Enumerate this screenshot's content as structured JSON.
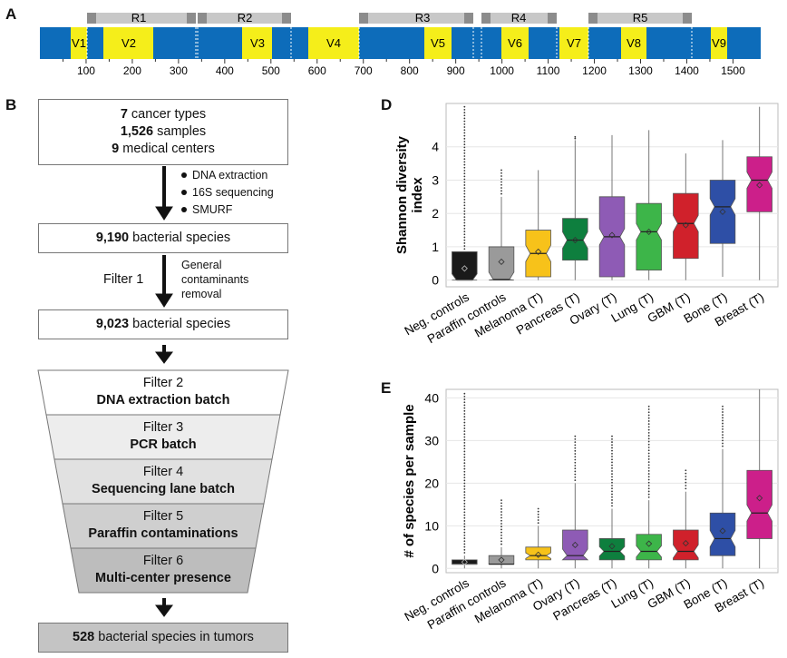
{
  "panels": {
    "a": "A",
    "b": "B",
    "d": "D",
    "e": "E"
  },
  "gene_map": {
    "regions": [
      "R1",
      "R2",
      "R3",
      "R4",
      "R5"
    ],
    "vregions": [
      "V1",
      "V2",
      "V3",
      "V4",
      "V5",
      "V6",
      "V7",
      "V8",
      "V9"
    ],
    "ticks": [
      "100",
      "200",
      "300",
      "400",
      "500",
      "600",
      "700",
      "800",
      "900",
      "1000",
      "1100",
      "1200",
      "1300",
      "1400",
      "1500"
    ],
    "colors": {
      "blue": "#0d6cba",
      "yellow": "#f5ee1a",
      "gray": "#c8c8c8",
      "darkgray": "#8c8c8c"
    }
  },
  "flow": {
    "box1": {
      "n1": "7",
      "t1": " cancer types",
      "n2": "1,526",
      "t2": " samples",
      "n3": "9",
      "t3": " medical centers"
    },
    "steps1": [
      "DNA extraction",
      "16S sequencing",
      "SMURF"
    ],
    "box2": {
      "n": "9,190",
      "t": " bacterial species"
    },
    "filter1_label": "Filter 1",
    "filter1_desc": [
      "General",
      "contaminants",
      "removal"
    ],
    "box3": {
      "n": "9,023",
      "t": " bacterial species"
    },
    "filters": [
      {
        "title": "Filter 2",
        "name": "DNA extraction batch",
        "color": "#ffffff"
      },
      {
        "title": "Filter 3",
        "name": "PCR batch",
        "color": "#ededed"
      },
      {
        "title": "Filter 4",
        "name": "Sequencing lane batch",
        "color": "#e1e1e1"
      },
      {
        "title": "Filter 5",
        "name": "Paraffin contaminations",
        "color": "#cfcfcf"
      },
      {
        "title": "Filter 6",
        "name": "Multi-center presence",
        "color": "#bdbdbd"
      }
    ],
    "final": {
      "n": "528",
      "t": " bacterial species in tumors"
    }
  },
  "chart_data": [
    {
      "type": "box",
      "panel": "D",
      "title": "",
      "xlabel": "",
      "ylabel": "Shannon diversity index",
      "ylim": [
        -0.2,
        5.3
      ],
      "yticks": [
        "0",
        "1",
        "2",
        "3",
        "4"
      ],
      "categories": [
        "Neg. controls",
        "Paraffin controls",
        "Melanoma (T)",
        "Pancreas (T)",
        "Ovary (T)",
        "Lung (T)",
        "GBM (T)",
        "Bone (T)",
        "Breast (T)"
      ],
      "colors": [
        "#1a1a1a",
        "#9a9a9a",
        "#f7c21a",
        "#0e7f3e",
        "#8e5bb5",
        "#3db549",
        "#d0212b",
        "#2e4fa6",
        "#cc1f8a"
      ],
      "boxes": [
        {
          "wlo": 0,
          "q1": 0,
          "med": 0,
          "q3": 0.85,
          "whi": 0.85,
          "mean": 0.35,
          "omax": 5.2
        },
        {
          "wlo": 0,
          "q1": 0,
          "med": 0.02,
          "q3": 1.0,
          "whi": 2.5,
          "mean": 0.55,
          "omax": 3.3
        },
        {
          "wlo": 0,
          "q1": 0.1,
          "med": 0.8,
          "q3": 1.5,
          "whi": 3.3,
          "mean": 0.85,
          "omax": 3.3
        },
        {
          "wlo": 0,
          "q1": 0.6,
          "med": 1.2,
          "q3": 1.85,
          "whi": 4.2,
          "mean": 1.2,
          "omax": 4.3
        },
        {
          "wlo": 0,
          "q1": 0.1,
          "med": 1.3,
          "q3": 2.5,
          "whi": 4.35,
          "mean": 1.35,
          "omax": 4.35
        },
        {
          "wlo": 0,
          "q1": 0.3,
          "med": 1.45,
          "q3": 2.3,
          "whi": 4.5,
          "mean": 1.45,
          "omax": 4.5
        },
        {
          "wlo": 0,
          "q1": 0.65,
          "med": 1.7,
          "q3": 2.6,
          "whi": 3.8,
          "mean": 1.65,
          "omax": 3.8
        },
        {
          "wlo": 0.1,
          "q1": 1.1,
          "med": 2.2,
          "q3": 3.0,
          "whi": 4.2,
          "mean": 2.05,
          "omax": 4.2
        },
        {
          "wlo": 0,
          "q1": 2.05,
          "med": 3.0,
          "q3": 3.7,
          "whi": 5.2,
          "mean": 2.85,
          "omax": 5.2
        }
      ]
    },
    {
      "type": "box",
      "panel": "E",
      "title": "",
      "xlabel": "",
      "ylabel": "# of species per sample",
      "ylim": [
        -1,
        42
      ],
      "yticks": [
        "0",
        "10",
        "20",
        "30",
        "40"
      ],
      "categories": [
        "Neg. controls",
        "Paraffin controls",
        "Melanoma (T)",
        "Ovary (T)",
        "Pancreas (T)",
        "Lung (T)",
        "GBM (T)",
        "Bone (T)",
        "Breast (T)"
      ],
      "colors": [
        "#1a1a1a",
        "#9a9a9a",
        "#f7c21a",
        "#8e5bb5",
        "#0e7f3e",
        "#3db549",
        "#d0212b",
        "#2e4fa6",
        "#cc1f8a"
      ],
      "boxes": [
        {
          "wlo": 0,
          "q1": 1,
          "med": 1,
          "q3": 2,
          "whi": 3,
          "mean": 1.5,
          "omax": 41
        },
        {
          "wlo": 0,
          "q1": 1,
          "med": 1,
          "q3": 3,
          "whi": 5,
          "mean": 2,
          "omax": 16
        },
        {
          "wlo": 0,
          "q1": 2,
          "med": 3,
          "q3": 5,
          "whi": 10,
          "mean": 3.2,
          "omax": 14
        },
        {
          "wlo": 0,
          "q1": 2,
          "med": 3,
          "q3": 9,
          "whi": 20,
          "mean": 5.5,
          "omax": 31
        },
        {
          "wlo": 0,
          "q1": 2,
          "med": 4,
          "q3": 7,
          "whi": 14,
          "mean": 5.2,
          "omax": 31
        },
        {
          "wlo": 0,
          "q1": 2,
          "med": 4,
          "q3": 8,
          "whi": 16,
          "mean": 5.8,
          "omax": 38
        },
        {
          "wlo": 0,
          "q1": 2,
          "med": 4,
          "q3": 9,
          "whi": 18,
          "mean": 5.9,
          "omax": 23
        },
        {
          "wlo": 0,
          "q1": 3,
          "med": 7,
          "q3": 13,
          "whi": 28,
          "mean": 8.8,
          "omax": 38
        },
        {
          "wlo": 0,
          "q1": 7,
          "med": 13,
          "q3": 23,
          "whi": 42,
          "mean": 16.5,
          "omax": 42
        }
      ]
    }
  ]
}
